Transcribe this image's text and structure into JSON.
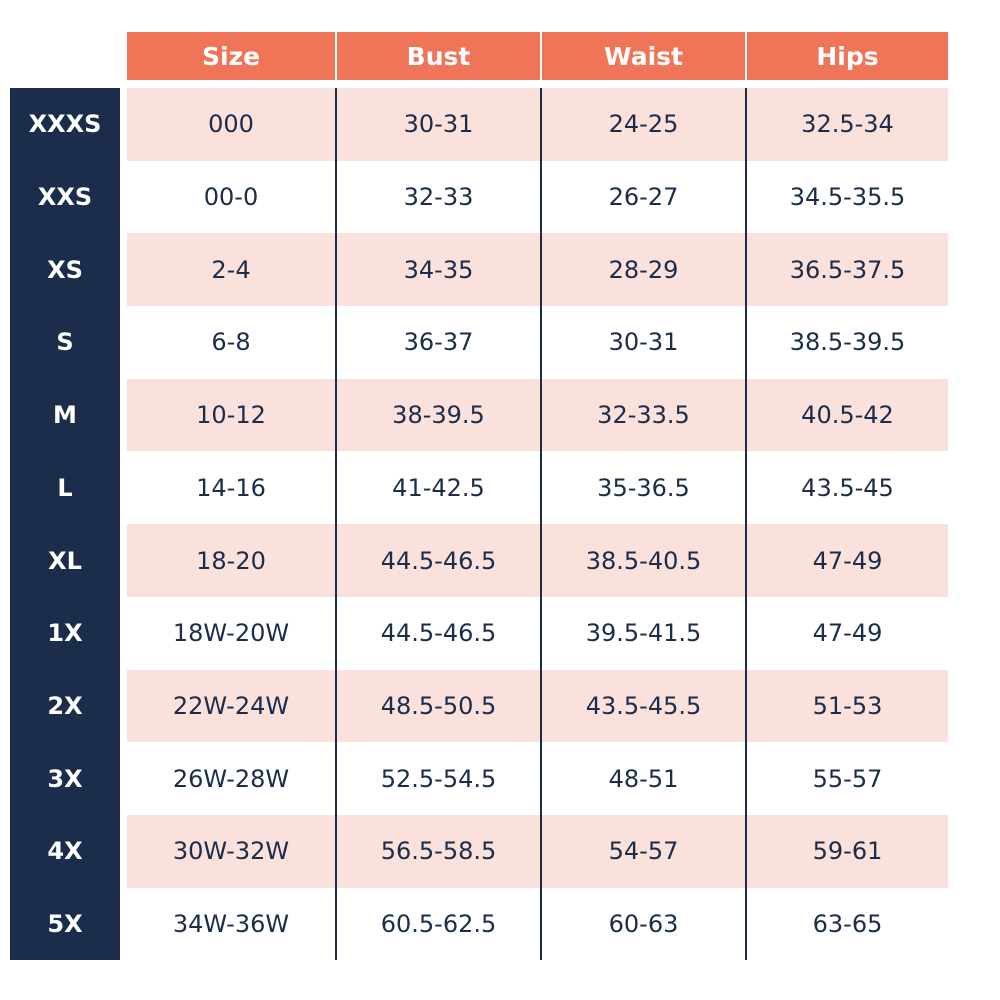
{
  "table": {
    "columns": [
      "Size",
      "Bust",
      "Waist",
      "Hips"
    ],
    "rows": [
      {
        "label": "XXXS",
        "cells": [
          "000",
          "30-31",
          "24-25",
          "32.5-34"
        ]
      },
      {
        "label": "XXS",
        "cells": [
          "00-0",
          "32-33",
          "26-27",
          "34.5-35.5"
        ]
      },
      {
        "label": "XS",
        "cells": [
          "2-4",
          "34-35",
          "28-29",
          "36.5-37.5"
        ]
      },
      {
        "label": "S",
        "cells": [
          "6-8",
          "36-37",
          "30-31",
          "38.5-39.5"
        ]
      },
      {
        "label": "M",
        "cells": [
          "10-12",
          "38-39.5",
          "32-33.5",
          "40.5-42"
        ]
      },
      {
        "label": "L",
        "cells": [
          "14-16",
          "41-42.5",
          "35-36.5",
          "43.5-45"
        ]
      },
      {
        "label": "XL",
        "cells": [
          "18-20",
          "44.5-46.5",
          "38.5-40.5",
          "47-49"
        ]
      },
      {
        "label": "1X",
        "cells": [
          "18W-20W",
          "44.5-46.5",
          "39.5-41.5",
          "47-49"
        ]
      },
      {
        "label": "2X",
        "cells": [
          "22W-24W",
          "48.5-50.5",
          "43.5-45.5",
          "51-53"
        ]
      },
      {
        "label": "3X",
        "cells": [
          "26W-28W",
          "52.5-54.5",
          "48-51",
          "55-57"
        ]
      },
      {
        "label": "4X",
        "cells": [
          "30W-32W",
          "56.5-58.5",
          "54-57",
          "59-61"
        ]
      },
      {
        "label": "5X",
        "cells": [
          "34W-36W",
          "60.5-62.5",
          "60-63",
          "63-65"
        ]
      }
    ]
  }
}
